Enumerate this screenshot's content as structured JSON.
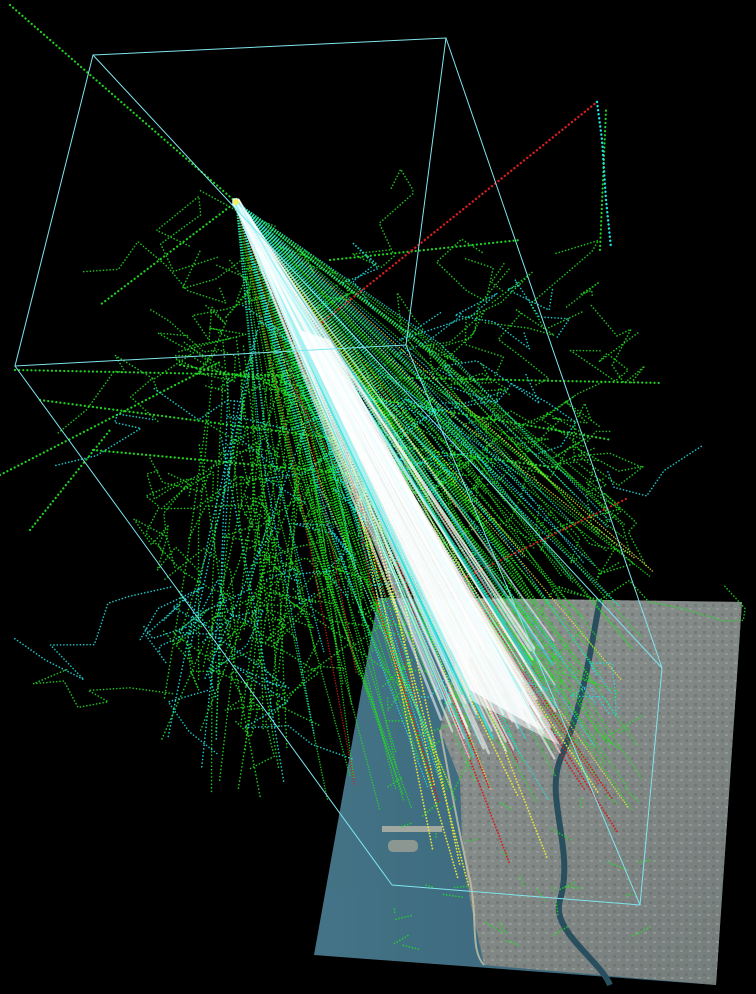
{
  "scene": {
    "background": "#000000",
    "bounding_box_color": "#7fe6ee",
    "track_colors": {
      "dense_core": "#ffffff",
      "cyan": "#22e0e0",
      "green": "#22dd22",
      "yellow": "#e8e63a",
      "red": "#d11e1e"
    },
    "basemap": {
      "water_color": "#3f6f86",
      "land_color": "#8d9594",
      "river_color": "#2b4f5e",
      "opacity": 0.9
    },
    "icons": [
      "origin-point-icon"
    ]
  }
}
